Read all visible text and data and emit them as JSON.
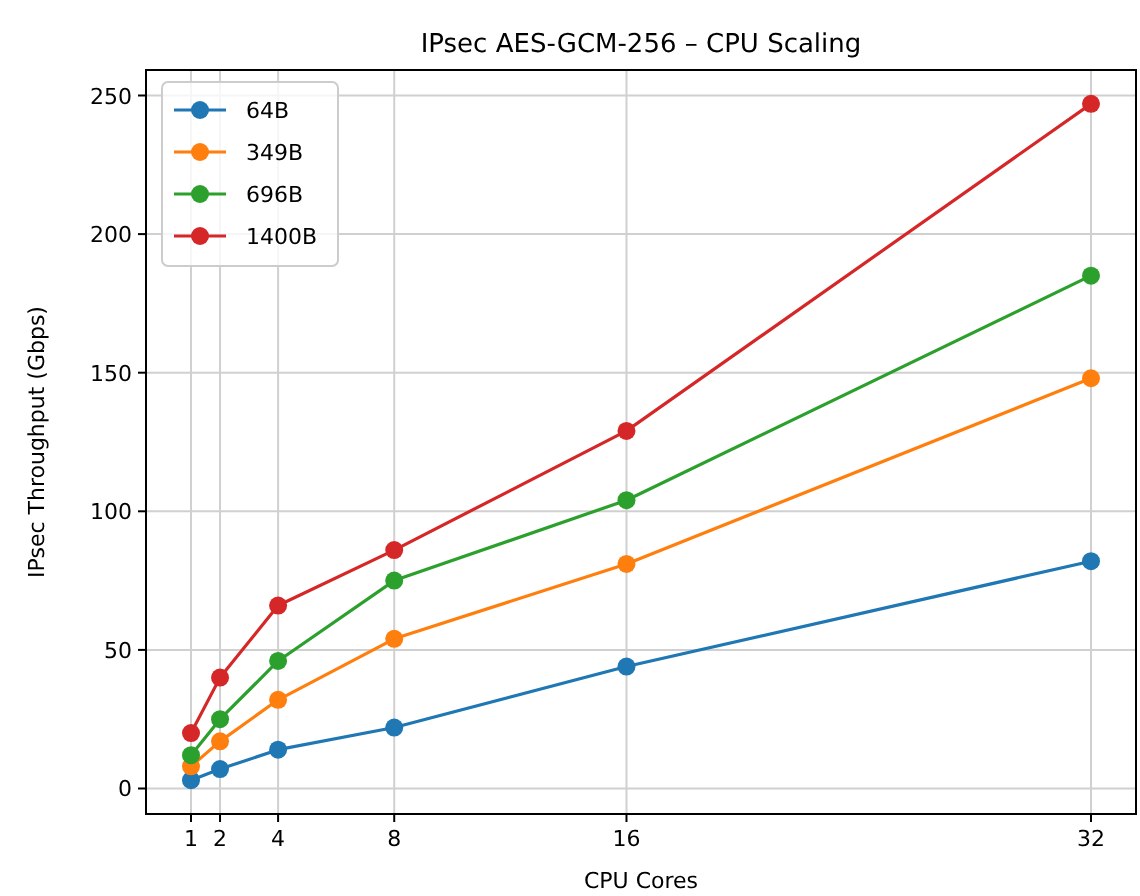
{
  "chart_data": {
    "type": "line",
    "title": "IPsec AES-GCM-256 – CPU Scaling",
    "xlabel": "CPU Cores",
    "ylabel": "IPsec Throughput (Gbps)",
    "x": [
      1,
      2,
      4,
      8,
      16,
      32
    ],
    "xlim": [
      -0.55,
      33.55
    ],
    "xticks": [
      1,
      2,
      4,
      8,
      16,
      32
    ],
    "ylim": [
      -9.2,
      259.2
    ],
    "yticks": [
      0,
      50,
      100,
      150,
      200,
      250
    ],
    "grid": true,
    "legend": "top left",
    "marker": "circle",
    "line_style": "solid",
    "series": [
      {
        "name": "64B",
        "color": "#1f77b4",
        "values": [
          3,
          7,
          14,
          22,
          44,
          82
        ]
      },
      {
        "name": "349B",
        "color": "#ff7f0e",
        "values": [
          8,
          17,
          32,
          54,
          81,
          148
        ]
      },
      {
        "name": "696B",
        "color": "#2ca02c",
        "values": [
          12,
          25,
          46,
          75,
          104,
          185
        ]
      },
      {
        "name": "1400B",
        "color": "#d62728",
        "values": [
          20,
          40,
          66,
          86,
          129,
          247
        ]
      }
    ]
  }
}
